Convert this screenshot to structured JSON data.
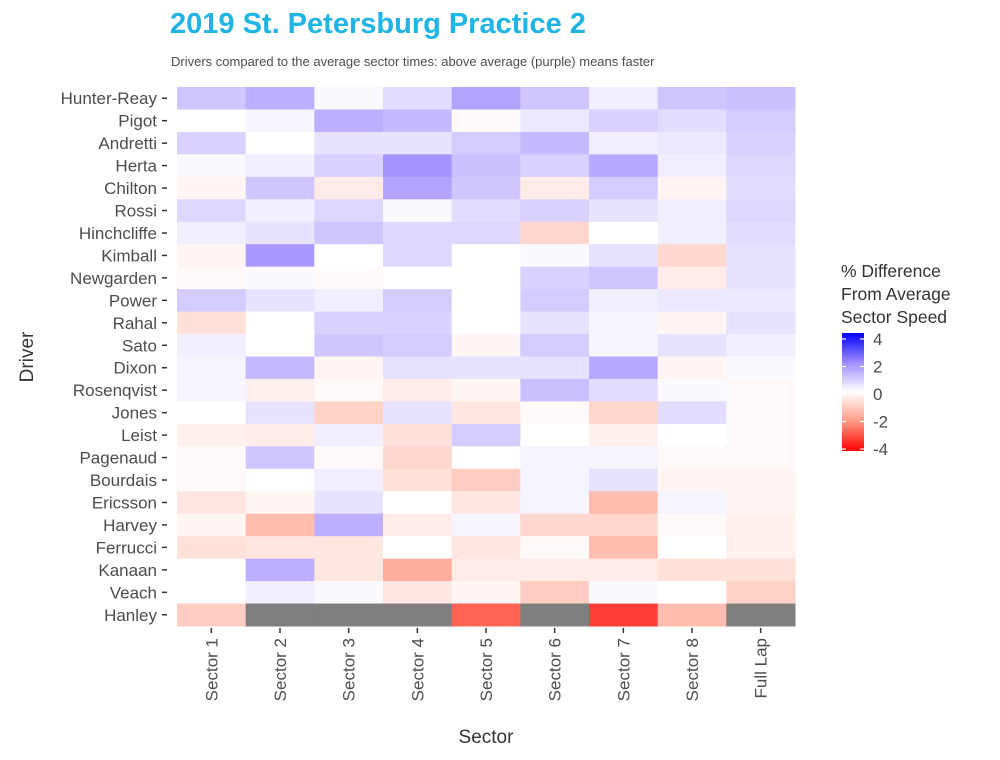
{
  "chart_data": {
    "type": "heatmap",
    "title": "2019 St. Petersburg Practice 2",
    "subtitle": "Drivers compared to the average sector times: above average (purple) means faster",
    "xlabel": "Sector",
    "ylabel": "Driver",
    "x_categories": [
      "Sector 1",
      "Sector 2",
      "Sector 3",
      "Sector 4",
      "Sector 5",
      "Sector 6",
      "Sector 7",
      "Sector 8",
      "Full Lap"
    ],
    "y_categories": [
      "Hunter-Reay",
      "Pigot",
      "Andretti",
      "Herta",
      "Chilton",
      "Rossi",
      "Hinchcliffe",
      "Kimball",
      "Newgarden",
      "Power",
      "Rahal",
      "Sato",
      "Dixon",
      "Rosenqvist",
      "Jones",
      "Leist",
      "Pagenaud",
      "Bourdais",
      "Ericsson",
      "Harvey",
      "Ferrucci",
      "Kanaan",
      "Veach",
      "Hanley"
    ],
    "values": [
      [
        1.0,
        1.4,
        0.1,
        0.6,
        1.6,
        1.0,
        0.3,
        1.0,
        1.1
      ],
      [
        0.0,
        0.2,
        1.4,
        1.2,
        -0.1,
        0.4,
        0.8,
        0.6,
        0.9
      ],
      [
        0.8,
        0.0,
        0.5,
        0.5,
        0.9,
        1.2,
        0.3,
        0.4,
        0.8
      ],
      [
        0.1,
        0.3,
        0.8,
        1.9,
        1.1,
        0.8,
        1.5,
        0.3,
        0.7
      ],
      [
        -0.2,
        1.0,
        -0.4,
        1.6,
        1.0,
        -0.4,
        0.9,
        -0.2,
        0.6
      ],
      [
        0.7,
        0.3,
        0.7,
        0.1,
        0.6,
        0.8,
        0.5,
        0.3,
        0.7
      ],
      [
        0.3,
        0.5,
        1.0,
        0.7,
        0.7,
        -0.8,
        0.0,
        0.3,
        0.6
      ],
      [
        -0.2,
        1.8,
        0.0,
        0.7,
        0.0,
        0.1,
        0.5,
        -0.8,
        0.5
      ],
      [
        -0.1,
        0.1,
        -0.1,
        0.0,
        0.0,
        0.8,
        1.0,
        -0.4,
        0.5
      ],
      [
        0.9,
        0.5,
        0.3,
        0.9,
        0.0,
        0.9,
        0.3,
        0.4,
        0.4
      ],
      [
        -0.6,
        0.0,
        0.8,
        0.8,
        0.0,
        0.5,
        0.2,
        -0.2,
        0.5
      ],
      [
        0.3,
        0.0,
        1.0,
        0.9,
        -0.2,
        0.9,
        0.2,
        0.5,
        0.3
      ],
      [
        0.2,
        1.2,
        -0.2,
        0.5,
        0.5,
        0.5,
        1.5,
        -0.2,
        0.1
      ],
      [
        0.2,
        -0.3,
        -0.1,
        -0.4,
        -0.2,
        1.1,
        0.6,
        0.1,
        -0.1
      ],
      [
        0.0,
        0.5,
        -0.9,
        0.5,
        -0.5,
        -0.1,
        -0.8,
        0.6,
        -0.1
      ],
      [
        -0.3,
        -0.4,
        0.3,
        -0.6,
        0.9,
        0.0,
        -0.3,
        0.0,
        -0.1
      ],
      [
        -0.1,
        1.0,
        -0.1,
        -0.8,
        0.0,
        0.2,
        0.2,
        -0.1,
        -0.1
      ],
      [
        -0.1,
        0.0,
        0.3,
        -0.6,
        -1.0,
        0.2,
        0.5,
        -0.2,
        -0.2
      ],
      [
        -0.5,
        -0.2,
        0.5,
        0.0,
        -0.5,
        0.2,
        -1.3,
        0.2,
        -0.2
      ],
      [
        -0.2,
        -1.3,
        1.4,
        -0.4,
        0.2,
        -0.8,
        -0.8,
        -0.1,
        -0.3
      ],
      [
        -0.6,
        -0.5,
        -0.5,
        0.0,
        -0.5,
        -0.1,
        -1.3,
        0.0,
        -0.3
      ],
      [
        0.0,
        1.4,
        -0.5,
        -1.6,
        -0.4,
        -0.4,
        -0.4,
        -0.6,
        -0.6
      ],
      [
        0.0,
        0.3,
        0.1,
        -0.5,
        -0.2,
        -1.0,
        0.1,
        0.0,
        -0.9
      ],
      [
        -1.0,
        null,
        null,
        null,
        -2.7,
        null,
        -3.2,
        -1.3,
        null
      ]
    ],
    "legend": {
      "title_lines": [
        "% Difference",
        "From Average",
        "Sector Speed"
      ],
      "ticks": [
        4,
        2,
        0,
        -2,
        -4
      ],
      "tick_labels": [
        "4",
        "2",
        "0",
        "-2",
        "-4"
      ],
      "range": [
        -4,
        4
      ],
      "position": "right"
    },
    "colors": {
      "high": "#0000FF",
      "mid": "#FFFFFF",
      "low": "#FF0000",
      "missing": "#7F7F7F",
      "title": "#1EB4E6"
    },
    "grid": false
  }
}
